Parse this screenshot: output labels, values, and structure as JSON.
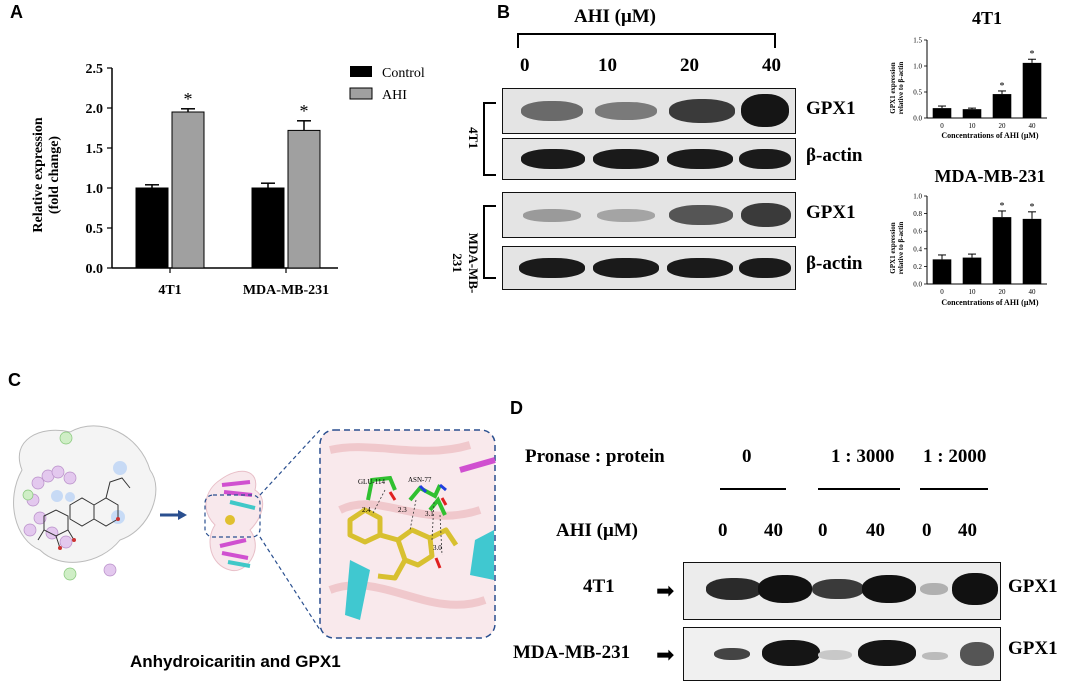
{
  "panels": {
    "a": "A",
    "b": "B",
    "c": "C",
    "d": "D"
  },
  "chart_a": {
    "type": "bar",
    "categories": [
      "4T1",
      "MDA-MB-231"
    ],
    "series": [
      {
        "name": "Control",
        "values": [
          1.0,
          1.0
        ],
        "errors": [
          0.04,
          0.06
        ],
        "color": "#000000"
      },
      {
        "name": "AHI",
        "values": [
          1.95,
          1.72
        ],
        "errors": [
          0.04,
          0.12
        ],
        "color": "#a0a0a0"
      }
    ],
    "significance": [
      "*",
      "*"
    ],
    "ylabel_line1": "Relative expression",
    "ylabel_line2": "(fold change)",
    "ylim": [
      0,
      2.5
    ],
    "yticks": [
      "0.0",
      "0.5",
      "1.0",
      "1.5",
      "2.0",
      "2.5"
    ],
    "legend": [
      "Control",
      "AHI"
    ],
    "legend_position": "top-right"
  },
  "blot_b": {
    "header": "AHI (μM)",
    "concentrations": [
      "0",
      "10",
      "20",
      "40"
    ],
    "cell_lines": [
      "4T1",
      "MDA-MB-231"
    ],
    "row_labels": [
      "GPX1",
      "β-actin",
      "GPX1",
      "β-actin"
    ]
  },
  "chart_b1": {
    "type": "bar",
    "title": "4T1",
    "categories": [
      "0",
      "10",
      "20",
      "40"
    ],
    "values": [
      0.19,
      0.17,
      0.46,
      1.06
    ],
    "errors": [
      0.04,
      0.02,
      0.06,
      0.07
    ],
    "significance": [
      "",
      "",
      "*",
      "*"
    ],
    "ylabel_line1": "GPX1 expression",
    "ylabel_line2": "relative to β-actin",
    "xlabel": "Concentrations of AHI (μM)",
    "ylim": [
      0,
      1.5
    ],
    "yticks": [
      "0.0",
      "0.5",
      "1.0",
      "1.5"
    ]
  },
  "chart_b2": {
    "type": "bar",
    "title": "MDA-MB-231",
    "categories": [
      "0",
      "10",
      "20",
      "40"
    ],
    "values": [
      0.28,
      0.3,
      0.76,
      0.74
    ],
    "errors": [
      0.05,
      0.04,
      0.07,
      0.08
    ],
    "significance": [
      "",
      "",
      "*",
      "*"
    ],
    "ylabel_line1": "GPX1 expression",
    "ylabel_line2": "relative to β-actin",
    "xlabel": "Concentrations of AHI (μM)",
    "ylim": [
      0,
      1.0
    ],
    "yticks": [
      "0.0",
      "0.2",
      "0.4",
      "0.6",
      "0.8",
      "1.0"
    ]
  },
  "panel_c": {
    "caption": "Anhydroicaritin and GPX1",
    "residues": [
      "GLU-114",
      "ASN-77"
    ],
    "distances": [
      "2.4",
      "2.3",
      "3.1",
      "3.0"
    ]
  },
  "panel_d": {
    "pronase_label": "Pronase : protein",
    "ratios": [
      "0",
      "1 : 3000",
      "1 : 2000"
    ],
    "ahi_label": "AHI (μM)",
    "ahi_values": [
      "0",
      "40",
      "0",
      "40",
      "0",
      "40"
    ],
    "cell_lines": [
      "4T1",
      "MDA-MB-231"
    ],
    "band_label": "GPX1"
  }
}
